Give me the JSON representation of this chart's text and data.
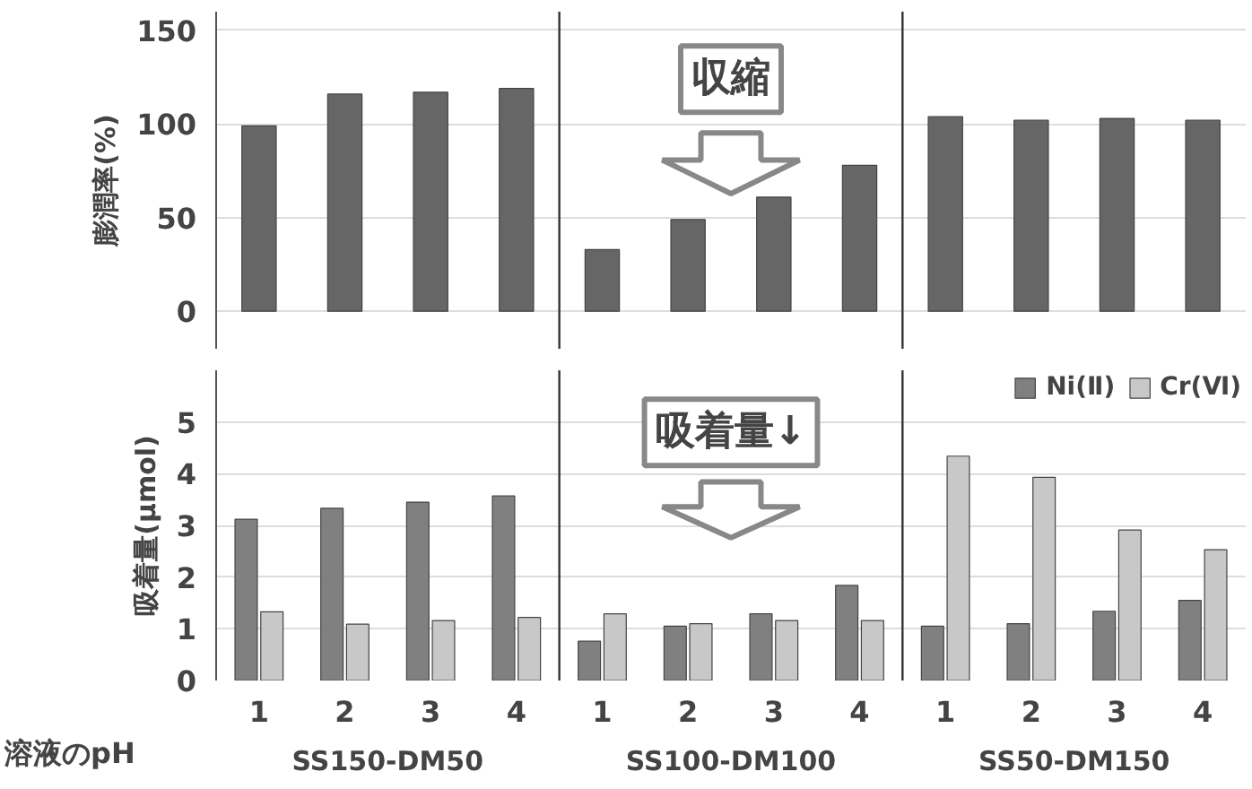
{
  "chart_data": [
    {
      "type": "bar",
      "ylabel": "膨潤率(%)",
      "categories": [
        null,
        null,
        null,
        null,
        null,
        null,
        null,
        null,
        null,
        null,
        null,
        null
      ],
      "series": [
        {
          "color": "#666666",
          "values": [
            99,
            116,
            117,
            119,
            33,
            49,
            61,
            78,
            104,
            102,
            103,
            102
          ]
        }
      ],
      "ylim": [
        -20,
        160
      ],
      "yticks": [
        0,
        50,
        100,
        150
      ],
      "grid": "y",
      "tick_labels": "y",
      "annotations": [
        "収縮"
      ]
    },
    {
      "type": "bar",
      "ylabel": "吸着量(μmol)",
      "xlabel": "溶液のpH",
      "categories": [
        "1",
        "2",
        "3",
        "4",
        "1",
        "2",
        "3",
        "4",
        "1",
        "2",
        "3",
        "4"
      ],
      "series": [
        {
          "name": "Ni(Ⅱ)",
          "color": "#808080",
          "values": [
            3.12,
            3.33,
            3.45,
            3.57,
            0.76,
            1.05,
            1.29,
            1.84,
            1.05,
            1.1,
            1.34,
            1.55
          ]
        },
        {
          "name": "Cr(Ⅵ)",
          "color": "#c8c8c8",
          "values": [
            1.33,
            1.09,
            1.16,
            1.22,
            1.29,
            1.1,
            1.16,
            1.16,
            4.34,
            3.93,
            2.91,
            2.53
          ]
        }
      ],
      "ylim": [
        0,
        6
      ],
      "yticks": [
        0,
        1,
        2,
        3,
        4,
        5
      ],
      "grid": "y",
      "legend": "top right",
      "annotations": [
        "吸着量↓",
        "SS150-DM50",
        "SS100-DM100",
        "SS50-DM150"
      ]
    }
  ]
}
